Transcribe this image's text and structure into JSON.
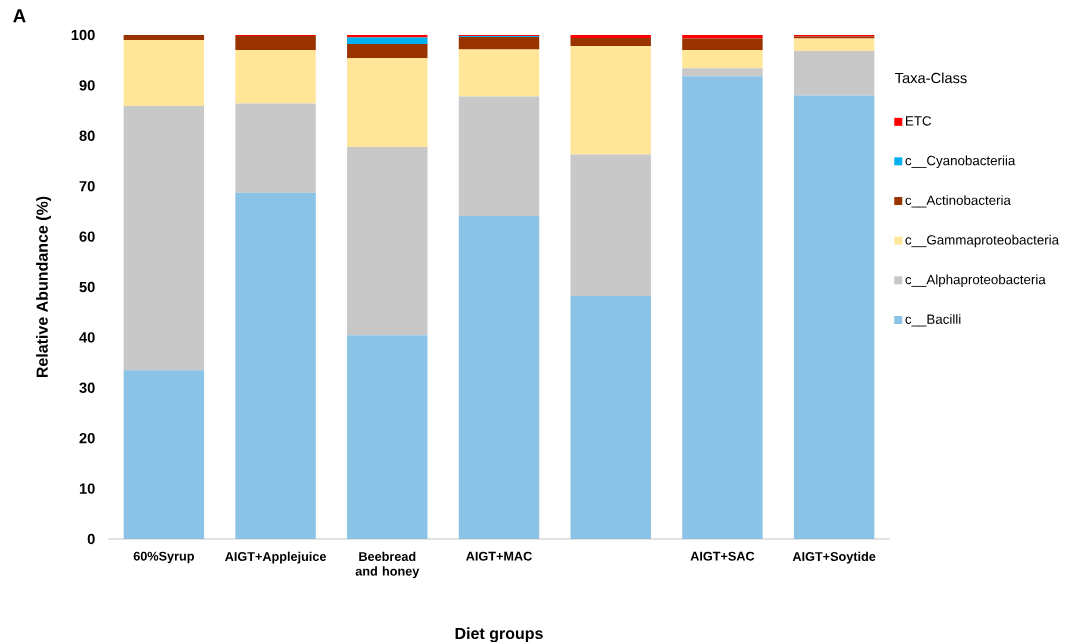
{
  "chart_data": {
    "type": "bar",
    "stacked": true,
    "xlabel": "Diet groups",
    "ylabel": "Relative Abundance (%)",
    "legend_title": "Taxa-Class",
    "legend": "right",
    "annotations": [
      "A"
    ],
    "categories": [
      "60%Syrup",
      "AIGT+Applejuice",
      "Beebread and honey",
      "AIGT+MAC",
      null,
      "AIGT+SAC",
      "AIGT+Soytide"
    ],
    "ylim": [
      0,
      100
    ],
    "yticks": [
      0,
      10,
      20,
      30,
      40,
      50,
      60,
      70,
      80,
      90,
      100
    ],
    "series": [
      {
        "name": "c__Bacilli",
        "color": "#8bc3e6",
        "values": [
          33.5,
          68.7,
          40.4,
          64.1,
          48.2,
          91.8,
          88.0
        ]
      },
      {
        "name": "c__Alphaproteobacteria",
        "color": "#c8c8c8",
        "values": [
          52.4,
          17.7,
          37.4,
          23.7,
          28.1,
          1.6,
          8.8
        ]
      },
      {
        "name": "c__Gammaproteobacteria",
        "color": "#ffe699",
        "values": [
          13.1,
          10.6,
          17.6,
          9.3,
          21.5,
          3.6,
          2.5
        ]
      },
      {
        "name": "c__Actinobacteria",
        "color": "#993300",
        "values": [
          1.0,
          2.8,
          2.8,
          2.5,
          1.6,
          2.3,
          0.4
        ]
      },
      {
        "name": "c__Cyanobacteriia",
        "color": "#00b0f0",
        "values": [
          0,
          0,
          1.3,
          0.2,
          0,
          0,
          0
        ]
      },
      {
        "name": "ETC",
        "color": "#ff0000",
        "values": [
          0,
          0.2,
          0.5,
          0.2,
          0.6,
          0.7,
          0.3
        ]
      }
    ]
  }
}
